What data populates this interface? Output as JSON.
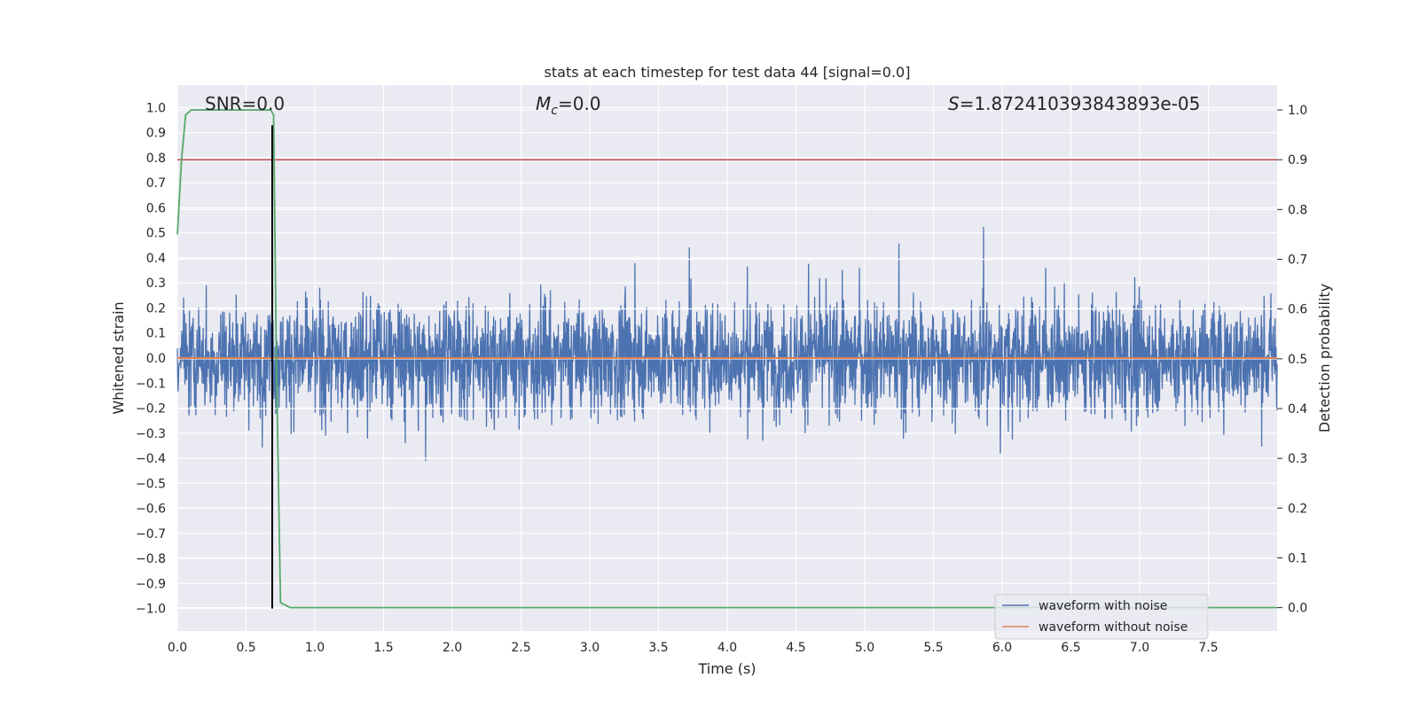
{
  "chart_data": {
    "type": "line",
    "title": "stats at each timestep for test data 44 [signal=0.0]",
    "xlabel": "Time (s)",
    "ylabel": "Whitened strain",
    "y2label": "Detection probability",
    "xlim": [
      0.0,
      8.0
    ],
    "ylim": [
      -1.09,
      1.09
    ],
    "y2lim": [
      -0.047,
      1.05
    ],
    "xticks": [
      "0.0",
      "0.5",
      "1.0",
      "1.5",
      "2.0",
      "2.5",
      "3.0",
      "3.5",
      "4.0",
      "4.5",
      "5.0",
      "5.5",
      "6.0",
      "6.5",
      "7.0",
      "7.5"
    ],
    "yticks": [
      "1.0",
      "0.9",
      "0.8",
      "0.7",
      "0.6",
      "0.5",
      "0.4",
      "0.3",
      "0.2",
      "0.1",
      "0.0",
      "−0.1",
      "−0.2",
      "−0.3",
      "−0.4",
      "−0.5",
      "−0.6",
      "−0.7",
      "−0.8",
      "−0.9",
      "−1.0"
    ],
    "y2ticks": [
      "1.0",
      "0.9",
      "0.8",
      "0.7",
      "0.6",
      "0.5",
      "0.4",
      "0.3",
      "0.2",
      "0.1",
      "0.0"
    ],
    "annotations": {
      "snr": "SNR=0.0",
      "mc_symbol": "M",
      "mc_sub": "c",
      "mc_value": "=0.0",
      "s_symbol": "S",
      "s_value": "=1.872410393843893e-05"
    },
    "series": [
      {
        "name": "waveform with noise",
        "color": "#4c72b0",
        "style": "noise",
        "amplitude_range": [
          -1.0,
          0.92
        ],
        "typical_range": [
          -0.5,
          0.55
        ]
      },
      {
        "name": "waveform without noise",
        "color": "#dd8452",
        "values_constant": 0.0
      },
      {
        "name": "detection probability",
        "color": "#55a868",
        "axis": "right",
        "x": [
          0.0,
          0.03,
          0.06,
          0.1,
          0.2,
          0.4,
          0.6,
          0.68,
          0.7,
          0.72,
          0.75,
          0.82,
          1.0,
          2.0,
          3.0,
          4.0,
          5.0,
          6.0,
          7.0,
          8.0
        ],
        "values": [
          0.75,
          0.9,
          0.99,
          1.0,
          1.0,
          1.0,
          1.0,
          1.0,
          0.99,
          0.5,
          0.01,
          0.0,
          0.0,
          0.0,
          0.0,
          0.0,
          0.0,
          0.0,
          0.0,
          0.0
        ]
      }
    ],
    "threshold_line": {
      "axis": "right",
      "value": 0.9,
      "color": "#c44e52"
    },
    "vertical_line": {
      "x": 0.69,
      "ymin": -1.0,
      "ymax": 0.93,
      "color": "#000000"
    },
    "legend": {
      "location": "lower-right",
      "entries": [
        {
          "label": "waveform with noise",
          "color": "#4c72b0"
        },
        {
          "label": "waveform without noise",
          "color": "#dd8452"
        }
      ]
    }
  }
}
